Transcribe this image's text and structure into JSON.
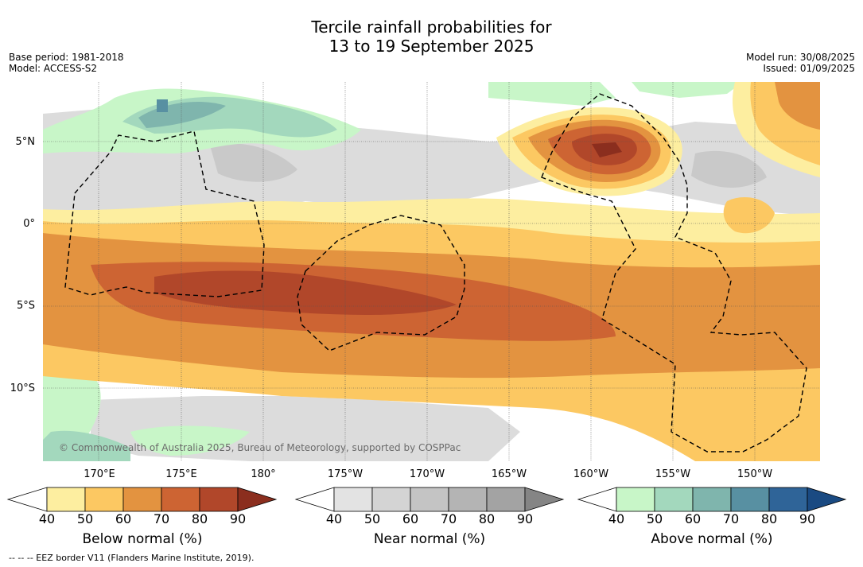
{
  "title_line1": "Tercile rainfall probabilities for",
  "title_line2": "13 to 19 September 2025",
  "meta_left": {
    "base_period": "Base period: 1981-2018",
    "model": "Model: ACCESS-S2"
  },
  "meta_right": {
    "model_run": "Model run: 30/08/2025",
    "issued": "Issued: 01/09/2025"
  },
  "lat_labels": [
    "5°N",
    "0°",
    "5°S",
    "10°S"
  ],
  "lon_labels": [
    "170°E",
    "175°E",
    "180°",
    "175°W",
    "170°W",
    "165°W",
    "160°W",
    "155°W",
    "150°W"
  ],
  "copyright": "© Commonwealth of Australia 2025, Bureau of Meteorology, supported by COSPPac",
  "colorbars": [
    {
      "label": "Below normal (%)",
      "ticks": [
        "40",
        "50",
        "60",
        "70",
        "80",
        "90"
      ],
      "colors": [
        "#fdeea0",
        "#fcc862",
        "#e39340",
        "#cd6433",
        "#b1472a",
        "#8b2e1e"
      ]
    },
    {
      "label": "Near normal (%)",
      "ticks": [
        "40",
        "50",
        "60",
        "70",
        "80",
        "90"
      ],
      "colors": [
        "#e3e3e3",
        "#d4d4d4",
        "#c4c4c4",
        "#b4b4b4",
        "#a3a3a3",
        "#858585"
      ]
    },
    {
      "label": "Above normal (%)",
      "ticks": [
        "40",
        "50",
        "60",
        "70",
        "80",
        "90"
      ],
      "colors": [
        "#c8f6c8",
        "#a3d8bd",
        "#7fb5ad",
        "#5890a2",
        "#2f6498",
        "#1a4a82"
      ]
    }
  ],
  "footnote": "--  --  -- EEZ border V11 (Flanders Marine Institute, 2019)."
}
